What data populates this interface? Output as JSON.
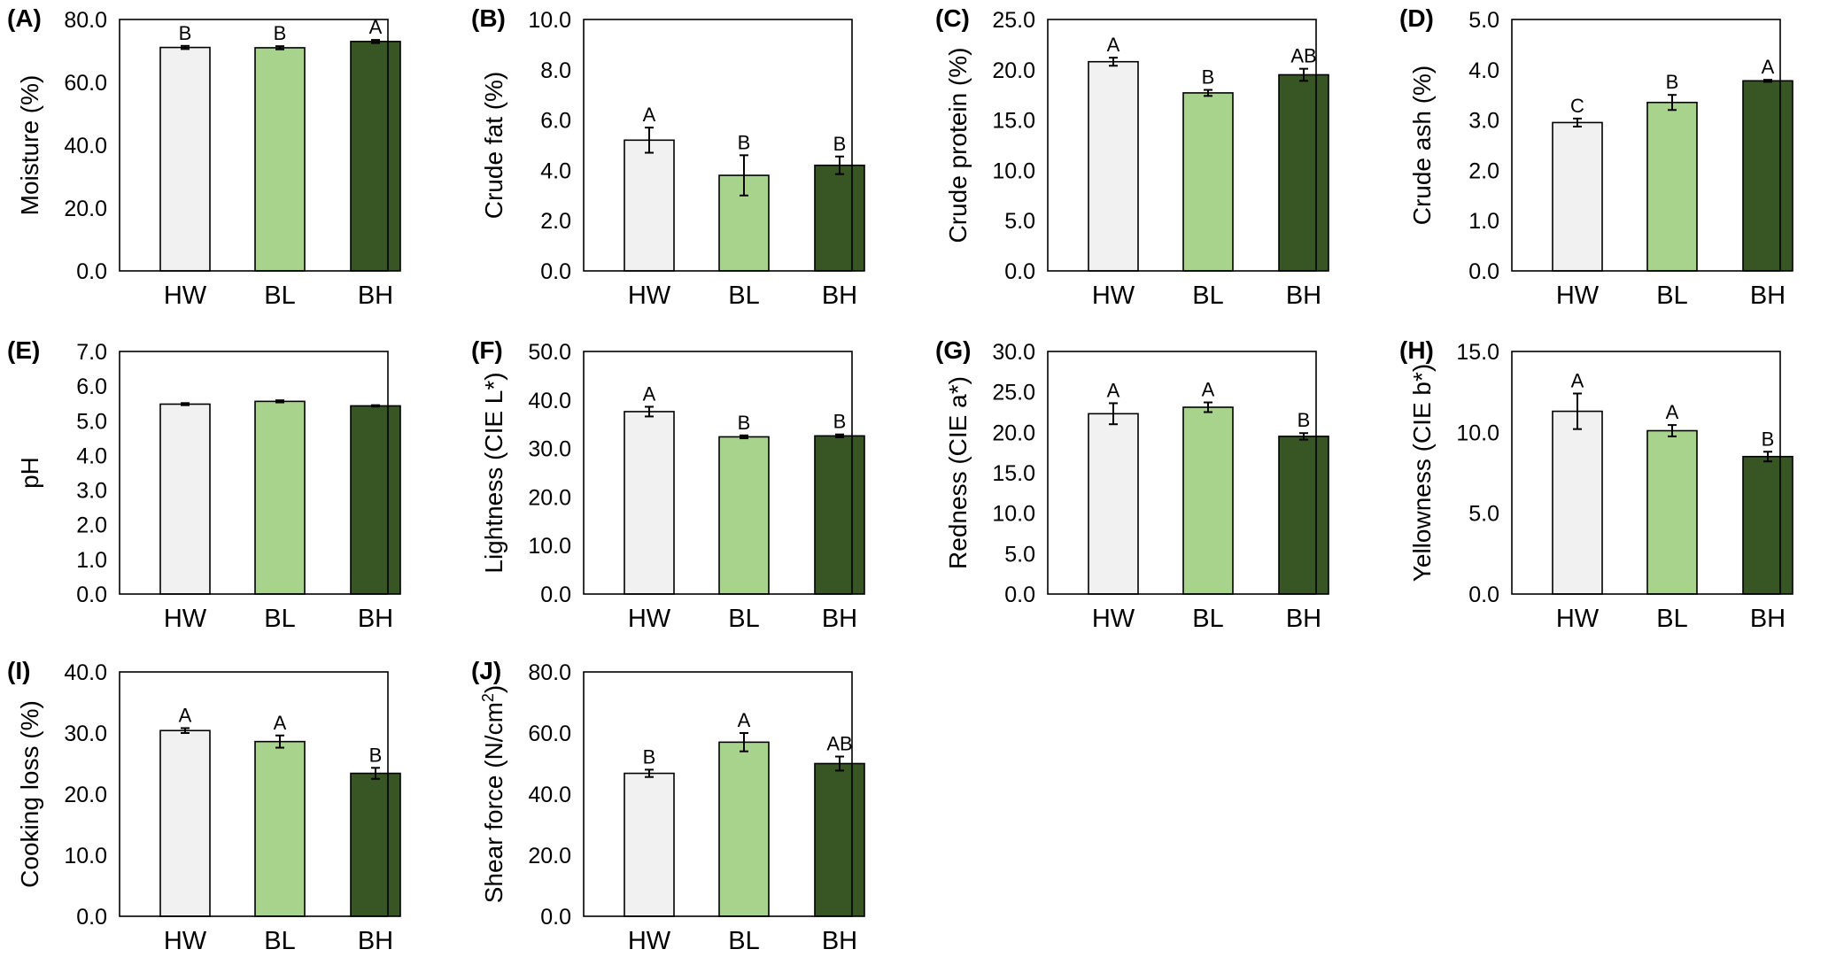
{
  "figure": {
    "colors": {
      "HW": "#f1f1f1",
      "BL": "#a8d38d",
      "BH": "#375623",
      "axis": "#000000"
    }
  },
  "chart_data": [
    {
      "type": "bar",
      "panel": "(A)",
      "ylabel": "Moisture (%)",
      "ylim": [
        0,
        80
      ],
      "yticks": [
        "0.0",
        "20.0",
        "40.0",
        "60.0",
        "80.0"
      ],
      "categories": [
        "HW",
        "BL",
        "BH"
      ],
      "values": [
        71.1,
        71.0,
        73.0
      ],
      "errors": [
        0.5,
        0.5,
        0.5
      ],
      "letters": [
        "B",
        "B",
        "A"
      ]
    },
    {
      "type": "bar",
      "panel": "(B)",
      "ylabel": "Crude fat (%)",
      "ylim": [
        0,
        10
      ],
      "yticks": [
        "0.0",
        "2.0",
        "4.0",
        "6.0",
        "8.0",
        "10.0"
      ],
      "categories": [
        "HW",
        "BL",
        "BH"
      ],
      "values": [
        5.2,
        3.8,
        4.2
      ],
      "errors": [
        0.5,
        0.8,
        0.35
      ],
      "letters": [
        "A",
        "B",
        "B"
      ]
    },
    {
      "type": "bar",
      "panel": "(C)",
      "ylabel": "Crude protein (%)",
      "ylim": [
        0,
        25
      ],
      "yticks": [
        "0.0",
        "5.0",
        "10.0",
        "15.0",
        "20.0",
        "25.0"
      ],
      "categories": [
        "HW",
        "BL",
        "BH"
      ],
      "values": [
        20.8,
        17.7,
        19.5
      ],
      "errors": [
        0.4,
        0.3,
        0.6
      ],
      "letters": [
        "A",
        "B",
        "AB"
      ]
    },
    {
      "type": "bar",
      "panel": "(D)",
      "ylabel": "Crude ash (%)",
      "ylim": [
        0,
        5
      ],
      "yticks": [
        "0.0",
        "1.0",
        "2.0",
        "3.0",
        "4.0",
        "5.0"
      ],
      "categories": [
        "HW",
        "BL",
        "BH"
      ],
      "values": [
        2.95,
        3.35,
        3.78
      ],
      "errors": [
        0.08,
        0.15,
        0.02
      ],
      "letters": [
        "C",
        "B",
        "A"
      ]
    },
    {
      "type": "bar",
      "panel": "(E)",
      "ylabel": "pH",
      "ylim": [
        0,
        7
      ],
      "yticks": [
        "0.0",
        "1.0",
        "2.0",
        "3.0",
        "4.0",
        "5.0",
        "6.0",
        "7.0"
      ],
      "categories": [
        "HW",
        "BL",
        "BH"
      ],
      "values": [
        5.48,
        5.56,
        5.43
      ],
      "errors": [
        0.03,
        0.03,
        0.02
      ],
      "letters": [
        "",
        "",
        ""
      ]
    },
    {
      "type": "bar",
      "panel": "(F)",
      "ylabel": "Lightness (CIE L*)",
      "ylim": [
        0,
        50
      ],
      "yticks": [
        "0.0",
        "10.0",
        "20.0",
        "30.0",
        "40.0",
        "50.0"
      ],
      "categories": [
        "HW",
        "BL",
        "BH"
      ],
      "values": [
        37.6,
        32.4,
        32.6
      ],
      "errors": [
        1.0,
        0.3,
        0.3
      ],
      "letters": [
        "A",
        "B",
        "B"
      ]
    },
    {
      "type": "bar",
      "panel": "(G)",
      "ylabel": "Redness (CIE a*)",
      "ylim": [
        0,
        30
      ],
      "yticks": [
        "0.0",
        "5.0",
        "10.0",
        "15.0",
        "20.0",
        "25.0",
        "30.0"
      ],
      "categories": [
        "HW",
        "BL",
        "BH"
      ],
      "values": [
        22.3,
        23.1,
        19.5
      ],
      "errors": [
        1.3,
        0.6,
        0.4
      ],
      "letters": [
        "A",
        "A",
        "B"
      ]
    },
    {
      "type": "bar",
      "panel": "(H)",
      "ylabel": "Yellowness (CIE b*)",
      "ylim": [
        0,
        15
      ],
      "yticks": [
        "0.0",
        "5.0",
        "10.0",
        "15.0"
      ],
      "categories": [
        "HW",
        "BL",
        "BH"
      ],
      "values": [
        11.3,
        10.1,
        8.5
      ],
      "errors": [
        1.1,
        0.35,
        0.3
      ],
      "letters": [
        "A",
        "A",
        "B"
      ]
    },
    {
      "type": "bar",
      "panel": "(I)",
      "ylabel": "Cooking loss (%)",
      "ylim": [
        0,
        40
      ],
      "yticks": [
        "0.0",
        "10.0",
        "20.0",
        "30.0",
        "40.0"
      ],
      "categories": [
        "HW",
        "BL",
        "BH"
      ],
      "values": [
        30.4,
        28.6,
        23.4
      ],
      "errors": [
        0.4,
        1.0,
        0.9
      ],
      "letters": [
        "A",
        "A",
        "B"
      ]
    },
    {
      "type": "bar",
      "panel": "(J)",
      "ylabel": "Shear force (N/cm²)",
      "ylim": [
        0,
        80
      ],
      "yticks": [
        "0.0",
        "20.0",
        "40.0",
        "60.0",
        "80.0"
      ],
      "categories": [
        "HW",
        "BL",
        "BH"
      ],
      "values": [
        46.8,
        57.0,
        50.0
      ],
      "errors": [
        1.2,
        3.0,
        2.3
      ],
      "letters": [
        "B",
        "A",
        "AB"
      ]
    }
  ]
}
